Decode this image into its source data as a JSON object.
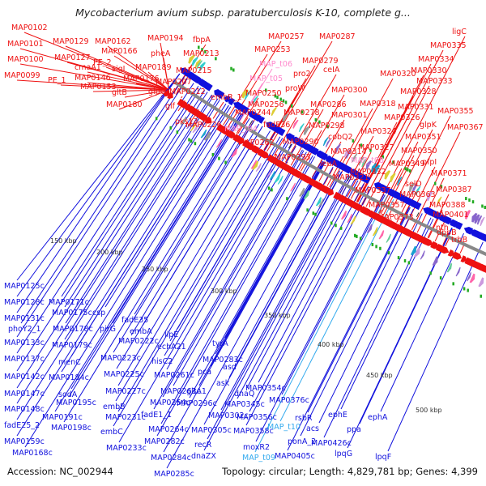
{
  "title": "Mycobacterium avium subsp. paratuberculosis K-10, complete g...",
  "footer": {
    "accession": "Accession: NC_002944",
    "stats": "Topology: circular; Length: 4,829,781 bp; Genes: 4,399"
  },
  "colors": {
    "forward": "#ee1111",
    "reverse": "#1111dd",
    "trna_forward": "#ff88cc",
    "trna_reverse": "#33aaee",
    "backbone": "#888888",
    "marker": "#22aa22"
  },
  "ticks": [
    "150 kbp",
    "200 kbp",
    "250 kbp",
    "300 kbp",
    "350 kbp",
    "400 kbp",
    "450 kbp",
    "500 kbp"
  ],
  "forward_labels": [
    "MAP0102",
    "MAP0101",
    "MAP0100",
    "MAP0099",
    "MAP0129",
    "MAP0127",
    "cmaA1",
    "PE_1",
    "MAP0146",
    "MAP0162",
    "PE_2",
    "MAP0166",
    "sigI",
    "MAP0153",
    "MAP0176",
    "gltB",
    "MAP0180",
    "MAP0189",
    "glpQ1",
    "MAP0194",
    "pheA",
    "MAP0207",
    "fbpA",
    "MAP0213",
    "MAP0215",
    "glf",
    "MAP0212",
    "pks13",
    "MAP0226",
    "embR_1",
    "MAP0257",
    "MAP0253",
    "MAP_t06",
    "MAP_t05",
    "MAP0287",
    "MAP0279",
    "pro2",
    "proW",
    "MAP0250",
    "MAP0256",
    "fadE36",
    "MAP_t04",
    "MAP0262",
    "MAP0244",
    "MAP0278",
    "MAP0286",
    "MAP0298",
    "MAP0290",
    "MAP0293",
    "MAP0300",
    "MAP0301",
    "ceIA",
    "cobQ2",
    "leuA",
    "MAP0314",
    "MAP0318",
    "MAP0321",
    "MAP0320",
    "MAP_t08",
    "MAP0324",
    "MAP0327",
    "MAP0332",
    "MAP0337",
    "MAP0357",
    "MAP0373",
    "ligC",
    "MAP0335",
    "MAP0334",
    "MAP0330",
    "MAP0333",
    "MAP0328",
    "MAP0331",
    "MAP0326",
    "glpK",
    "MAP0355",
    "MAP0367",
    "MAP0351",
    "MAP0350",
    "MAP0349",
    "pfpI",
    "MAP0371",
    "selD",
    "MAP0363",
    "MAP0387",
    "MAP0388",
    "MAP0401",
    "nth",
    "dppB",
    "trbB"
  ],
  "reverse_labels": [
    "MAP0125c",
    "MAP0128c",
    "MAP0131c",
    "phoY2_1",
    "MAP0133c",
    "MAP0137c",
    "MAP0142c",
    "MAP0147c",
    "MAP0148c",
    "fadE25_2",
    "MAP0159c",
    "MAP0168c",
    "MAP0171c",
    "MAP0175c",
    "MAP0178c",
    "MAP0179c",
    "menC",
    "MAP0184c",
    "sodA",
    "MAP0195c",
    "MAP0191c",
    "MAP0198c",
    "csp",
    "pirG",
    "fadE35",
    "embA",
    "MAP0222c",
    "MAP0223c",
    "MAP0225c",
    "MAP0227c",
    "embB",
    "MAP0231c",
    "embC",
    "MAP0233c",
    "MAP0254c",
    "MAP0264c",
    "MAP0282c",
    "MAP0284c",
    "MAP0285c",
    "lipE",
    "echA21",
    "hisC2",
    "fadE1_1",
    "MAP0261c",
    "MAP0263c",
    "gltA1",
    "MAP0283c",
    "tyrA",
    "pca",
    "ask",
    "asd",
    "dnaQ",
    "MAP0296c",
    "MAP0305c",
    "recR",
    "dnaZX",
    "MAP0302c",
    "MAP0345c",
    "MAP0354c",
    "MAP0356c",
    "MAP0358c",
    "moxR2",
    "MAP_t09",
    "MAP_t10",
    "rsbR",
    "ponA_2",
    "MAP0376c",
    "MAP0405c",
    "ephE",
    "acs",
    "MAP0426c",
    "lpqG",
    "ppa",
    "ephA",
    "lpqF"
  ]
}
